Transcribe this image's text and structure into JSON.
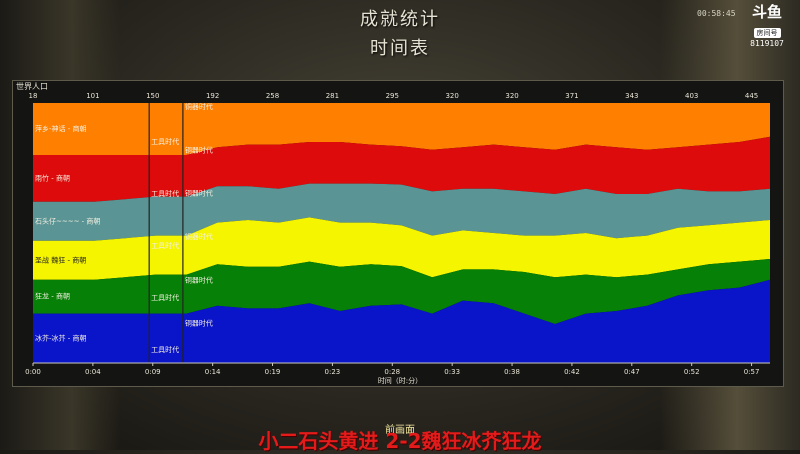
{
  "header": {
    "title": "成就统计",
    "subtitle": "时间表",
    "clock": "00:58:45"
  },
  "streamer": {
    "logo": "斗鱼",
    "room_label": "房间号",
    "room_id": "8119107"
  },
  "chart_data": {
    "type": "area",
    "panel_label": "世界人口",
    "xlabel": "时间（时:分）",
    "x_ticks": [
      "0:00",
      "0:04",
      "0:09",
      "0:14",
      "0:19",
      "0:23",
      "0:28",
      "0:33",
      "0:38",
      "0:42",
      "0:47",
      "0:52",
      "0:57"
    ],
    "top_ticks": [
      "18",
      "101",
      "150",
      "192",
      "258",
      "281",
      "295",
      "320",
      "320",
      "371",
      "343",
      "403",
      "445"
    ],
    "stacked_percent": true,
    "series": [
      {
        "name": "萍乡-神话 - 商朝",
        "color": "#ff7f00",
        "values": [
          20,
          20,
          20,
          20,
          20,
          20,
          17,
          16,
          16,
          15,
          15,
          16,
          17,
          18,
          17,
          16,
          17,
          18,
          16,
          17,
          18,
          17,
          16,
          15,
          13
        ]
      },
      {
        "name": "雨竹 - 商朝",
        "color": "#dd0b0b",
        "values": [
          18,
          18,
          18,
          17,
          16,
          16,
          15,
          16,
          17,
          16,
          16,
          15,
          15,
          16,
          16,
          17,
          17,
          17,
          17,
          18,
          17,
          16,
          18,
          19,
          20
        ]
      },
      {
        "name": "石头仔~~~~ - 商朝",
        "color": "#5a9494",
        "values": [
          15,
          15,
          15,
          15,
          15,
          15,
          14,
          13,
          13,
          13,
          15,
          15,
          16,
          17,
          16,
          17,
          17,
          16,
          17,
          17,
          16,
          15,
          13,
          12,
          12
        ]
      },
      {
        "name": "圣战 魏狂 - 商朝",
        "color": "#f5f500",
        "values": [
          15,
          15,
          15,
          15,
          15,
          15,
          16,
          18,
          17,
          17,
          17,
          16,
          16,
          16,
          15,
          14,
          14,
          16,
          16,
          15,
          15,
          16,
          15,
          15,
          15
        ]
      },
      {
        "name": "狂龙 - 商朝",
        "color": "#068006",
        "values": [
          13,
          13,
          13,
          14,
          15,
          15,
          16,
          16,
          16,
          16,
          17,
          16,
          15,
          14,
          12,
          13,
          16,
          18,
          15,
          13,
          12,
          10,
          10,
          10,
          8
        ]
      },
      {
        "name": "冰芥-冰芥 - 商朝",
        "color": "#0a14c8",
        "values": [
          19,
          19,
          19,
          19,
          19,
          19,
          22,
          21,
          21,
          23,
          20,
          22,
          23,
          19,
          24,
          23,
          19,
          15,
          19,
          20,
          22,
          26,
          28,
          29,
          32
        ]
      }
    ],
    "age_markers": [
      {
        "x_minute": 9.3,
        "labels": [
          "工具时代",
          "工具时代",
          "工具时代",
          "工具时代",
          "工具时代"
        ]
      },
      {
        "x_minute": 12.0,
        "labels": [
          "铜器时代",
          "铜器时代",
          "铜器时代",
          "铜器时代",
          "铜器时代",
          "铜器时代"
        ]
      }
    ],
    "xlim_minutes": [
      0,
      59
    ]
  },
  "footer": {
    "main_button": "前画面",
    "caption": "小二石头黄进 2-2魏狂冰芥狂龙"
  }
}
